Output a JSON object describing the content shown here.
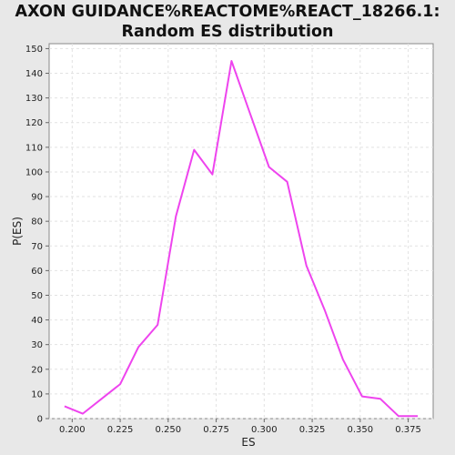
{
  "chart_data": {
    "type": "line",
    "title_line1": "AXON GUIDANCE%REACTOME%REACT_18266.1:",
    "title_line2": "Random ES distribution",
    "xlabel": "ES",
    "ylabel": "P(ES)",
    "xlim": [
      0.188,
      0.388
    ],
    "ylim": [
      0,
      152
    ],
    "x_ticks": [
      "0.200",
      "0.225",
      "0.250",
      "0.275",
      "0.300",
      "0.325",
      "0.350",
      "0.375"
    ],
    "x_tick_values": [
      0.2,
      0.225,
      0.25,
      0.275,
      0.3,
      0.325,
      0.35,
      0.375
    ],
    "y_ticks": [
      "0",
      "10",
      "20",
      "30",
      "40",
      "50",
      "60",
      "70",
      "80",
      "90",
      "100",
      "110",
      "120",
      "130",
      "140",
      "150"
    ],
    "y_tick_values": [
      0,
      10,
      20,
      30,
      40,
      50,
      60,
      70,
      80,
      90,
      100,
      110,
      120,
      130,
      140,
      150
    ],
    "grid": true,
    "series": [
      {
        "color": "#ee44ee",
        "x": [
          0.196,
          0.2055,
          0.225,
          0.2345,
          0.2445,
          0.254,
          0.2635,
          0.273,
          0.283,
          0.2925,
          0.3025,
          0.312,
          0.322,
          0.3315,
          0.341,
          0.351,
          0.3605,
          0.37,
          0.38
        ],
        "y": [
          5,
          2,
          14,
          29,
          38,
          82,
          109,
          99,
          145,
          124,
          102,
          96,
          62,
          44,
          24,
          9,
          8,
          1,
          1
        ]
      }
    ]
  }
}
